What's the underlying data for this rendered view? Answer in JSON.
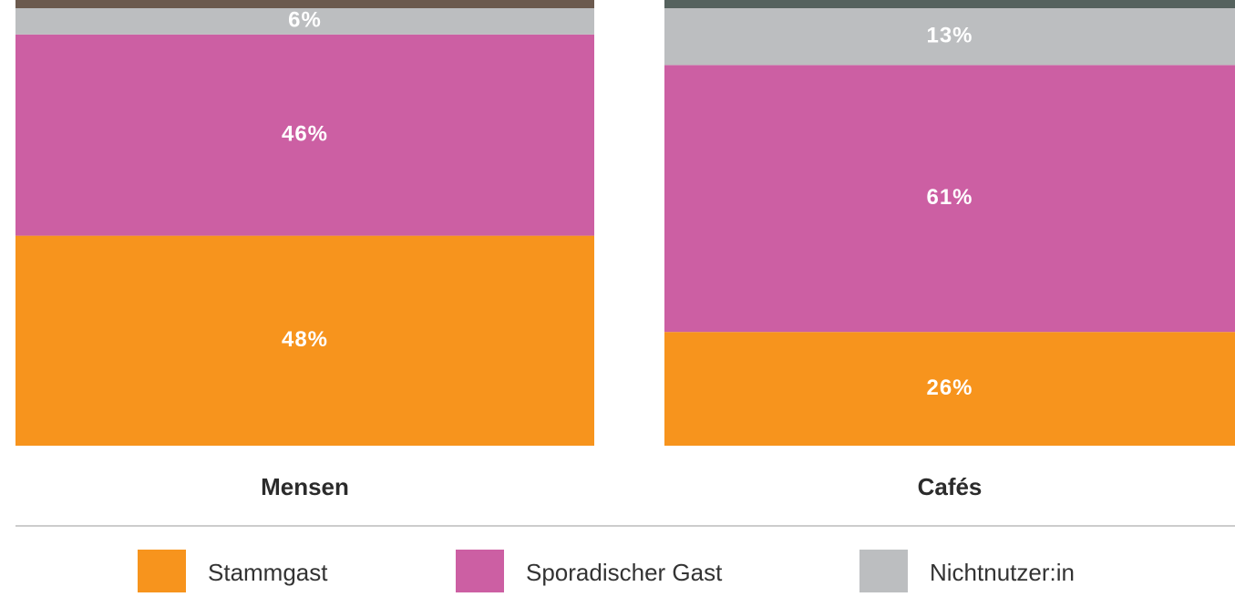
{
  "chart_data": {
    "type": "stacked_bar",
    "categories": [
      "Mensen",
      "Cafés"
    ],
    "series": [
      {
        "name": "Stammgast",
        "color": "#f7941d",
        "values": [
          48,
          26
        ],
        "value_labels": [
          "48%",
          "26%"
        ]
      },
      {
        "name": "Sporadischer Gast",
        "color": "#cc5fa3",
        "values": [
          46,
          61
        ],
        "value_labels": [
          "46%",
          "61%"
        ]
      },
      {
        "name": "Nichtnutzer:in",
        "color": "#bcbec0",
        "values": [
          6,
          13
        ],
        "value_labels": [
          "6%",
          "13%"
        ]
      }
    ]
  }
}
